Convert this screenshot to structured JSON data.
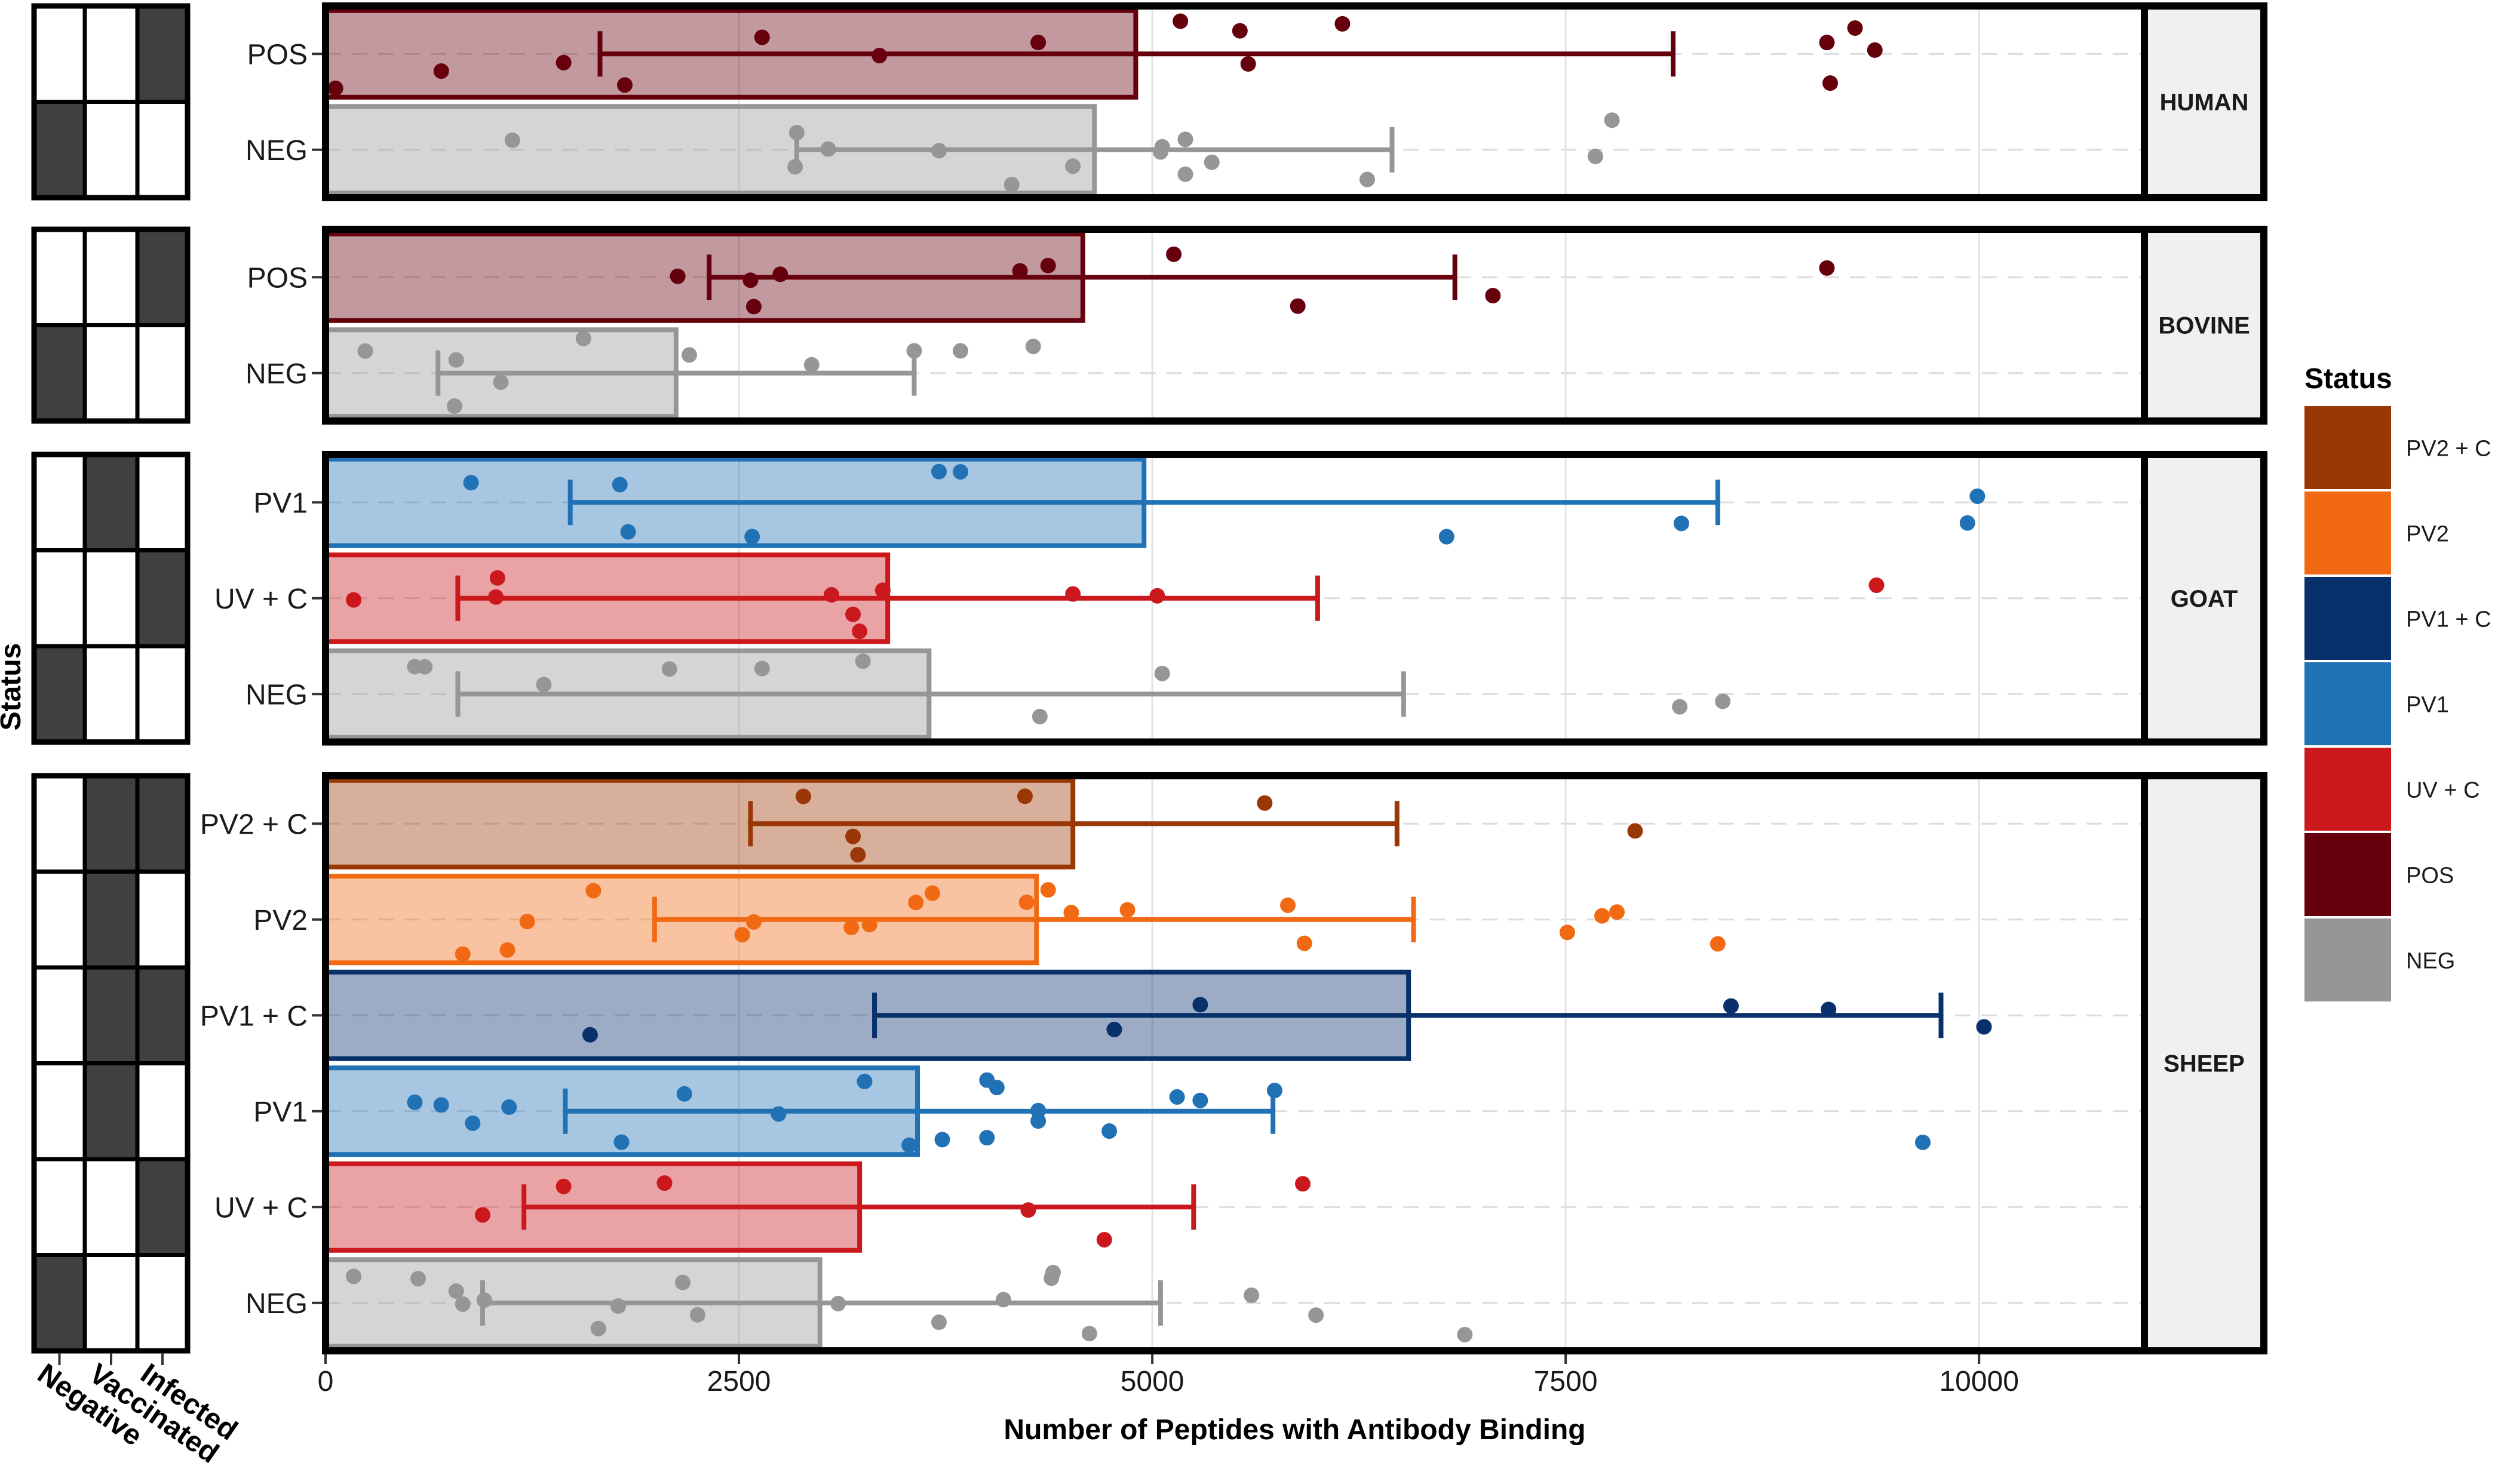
{
  "chart_data": {
    "type": "bar",
    "xlabel": "Number of Peptides with Antibody Binding",
    "ylabel": "Status",
    "xlim": [
      0,
      11000
    ],
    "xticks": [
      0,
      2500,
      5000,
      7500,
      10000
    ],
    "xtick_labels": [
      "0",
      "2500",
      "5000",
      "7500",
      "10000"
    ],
    "colors": {
      "PV2 + C": "#9A3706",
      "PV2": "#F16913",
      "PV1 + C": "#08306B",
      "PV1": "#2171B5",
      "UV + C": "#CB181D",
      "POS": "#67000D",
      "NEG": "#969696"
    },
    "legend": {
      "title": "Status",
      "position": "right",
      "items": [
        "PV2 + C",
        "PV2",
        "PV1 + C",
        "PV1",
        "UV + C",
        "POS",
        "NEG"
      ]
    },
    "matrix_columns": [
      "Negative",
      "Vaccinated",
      "Infected"
    ],
    "panels": [
      {
        "name": "HUMAN",
        "groups": [
          {
            "label": "POS",
            "mean": 4900,
            "err_low": 1660,
            "err_high": 8150,
            "points": [
              700,
              3350,
              4310,
              5170,
              5530,
              5580,
              6150,
              9100,
              9080,
              9250,
              9370,
              60,
              1440,
              1810,
              2640
            ]
          },
          {
            "label": "NEG",
            "mean": 4650,
            "err_low": 2850,
            "err_high": 6450,
            "points": [
              1130,
              2850,
              2840,
              3040,
              3710,
              4150,
              4520,
              5050,
              5060,
              5200,
              5200,
              5360,
              6300,
              7680,
              7780
            ]
          }
        ]
      },
      {
        "name": "BOVINE",
        "groups": [
          {
            "label": "POS",
            "mean": 4580,
            "err_low": 2320,
            "err_high": 6830,
            "points": [
              2750,
              2590,
              2570,
              5880,
              7060,
              4200,
              4370,
              2130,
              5130,
              9080
            ]
          },
          {
            "label": "NEG",
            "mean": 2120,
            "err_low": 680,
            "err_high": 3560,
            "points": [
              240,
              1560,
              780,
              2940,
              3560,
              3840,
              4280,
              790,
              2200,
              1060
            ]
          }
        ]
      },
      {
        "name": "GOAT",
        "groups": [
          {
            "label": "PV1",
            "mean": 4950,
            "err_low": 1480,
            "err_high": 8420,
            "points": [
              8200,
              1830,
              3840,
              9990,
              9930,
              880,
              1780,
              2580,
              3710,
              6780
            ]
          },
          {
            "label": "UV + C",
            "mean": 3400,
            "err_low": 800,
            "err_high": 6000,
            "points": [
              3370,
              1040,
              3230,
              3190,
              5030,
              4520,
              170,
              1030,
              3060,
              9380
            ]
          },
          {
            "label": "NEG",
            "mean": 3650,
            "err_low": 800,
            "err_high": 6520,
            "points": [
              1320,
              2080,
              2640,
              3250,
              4320,
              8450,
              5060,
              8190,
              600,
              540
            ]
          }
        ]
      },
      {
        "name": "SHEEP",
        "groups": [
          {
            "label": "PV2 + C",
            "mean": 4520,
            "err_low": 2570,
            "err_high": 6480,
            "points": [
              7920,
              5680,
              3190,
              2890,
              4230,
              3220
            ]
          },
          {
            "label": "PV2",
            "mean": 4300,
            "err_low": 1990,
            "err_high": 6580,
            "points": [
              1620,
              3570,
              3670,
              5820,
              7510,
              7720,
              7810,
              2590,
              4370,
              5920,
              1220,
              2520,
              3290,
              4240,
              4850,
              8420,
              830,
              1100,
              3180,
              4510
            ]
          },
          {
            "label": "PV1 + C",
            "mean": 6550,
            "err_low": 3320,
            "err_high": 9770,
            "points": [
              1600,
              4770,
              10030,
              5290,
              8500,
              9090
            ]
          },
          {
            "label": "PV1",
            "mean": 3580,
            "err_low": 1450,
            "err_high": 5730,
            "points": [
              700,
              890,
              1110,
              3530,
              3730,
              4000,
              5290,
              540,
              3260,
              4000,
              4060,
              4310,
              5150,
              5740,
              1790,
              2170,
              4310,
              9660,
              2740,
              4740
            ]
          },
          {
            "label": "UV + C",
            "mean": 3230,
            "err_low": 1200,
            "err_high": 5250,
            "points": [
              4710,
              2050,
              950,
              4250,
              5910,
              1440
            ]
          },
          {
            "label": "NEG",
            "mean": 2990,
            "err_low": 950,
            "err_high": 5050,
            "points": [
              830,
              4100,
              4400,
              4620,
              3100,
              6890,
              2250,
              560,
              790,
              1650,
              960,
              5600,
              5990,
              170,
              1770,
              2160,
              3710,
              4390
            ]
          }
        ]
      }
    ]
  }
}
